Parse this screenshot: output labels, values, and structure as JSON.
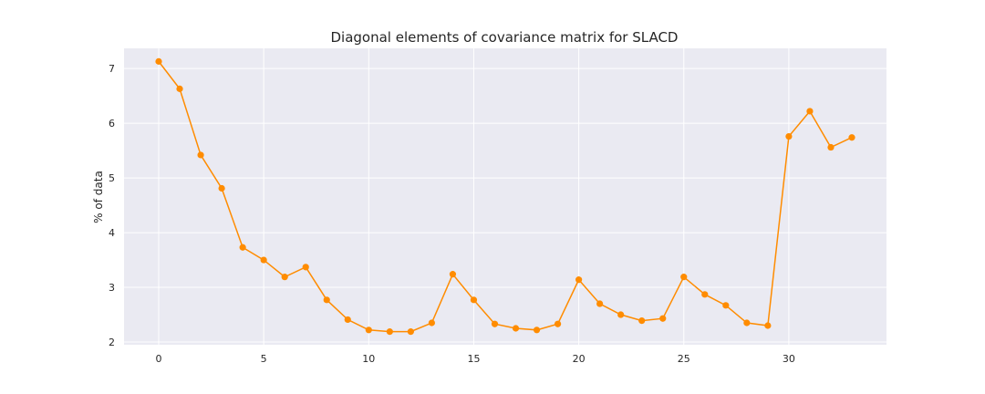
{
  "chart_data": {
    "type": "line",
    "title": "Diagonal elements of covariance matrix for SLACD",
    "xlabel": "",
    "ylabel": "% of data",
    "x": [
      0,
      1,
      2,
      3,
      4,
      5,
      6,
      7,
      8,
      9,
      10,
      11,
      12,
      13,
      14,
      15,
      16,
      17,
      18,
      19,
      20,
      21,
      22,
      23,
      24,
      25,
      26,
      27,
      28,
      29,
      30,
      31,
      32,
      33
    ],
    "series": [
      {
        "values": [
          7.13,
          6.63,
          5.42,
          4.81,
          3.73,
          3.5,
          3.19,
          3.37,
          2.77,
          2.41,
          2.22,
          2.19,
          2.19,
          2.35,
          3.24,
          2.77,
          2.33,
          2.25,
          2.22,
          2.33,
          3.14,
          2.7,
          2.5,
          2.39,
          2.43,
          3.19,
          2.87,
          2.67,
          2.35,
          2.3,
          5.76,
          6.22,
          5.56,
          5.74
        ],
        "color": "#ff8c00"
      }
    ],
    "xlim": [
      -1.65,
      34.65
    ],
    "ylim": [
      1.95,
      7.37
    ],
    "xticks": [
      0,
      5,
      10,
      15,
      20,
      25,
      30
    ],
    "yticks": [
      2,
      3,
      4,
      5,
      6,
      7
    ],
    "grid": true,
    "background": "#eaeaf2",
    "grid_color": "#ffffff"
  }
}
